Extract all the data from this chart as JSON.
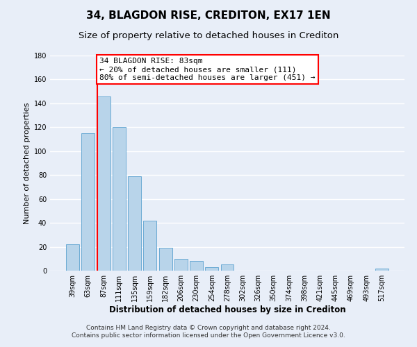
{
  "title": "34, BLAGDON RISE, CREDITON, EX17 1EN",
  "subtitle": "Size of property relative to detached houses in Crediton",
  "xlabel": "Distribution of detached houses by size in Crediton",
  "ylabel": "Number of detached properties",
  "footnote1": "Contains HM Land Registry data © Crown copyright and database right 2024.",
  "footnote2": "Contains public sector information licensed under the Open Government Licence v3.0.",
  "bar_labels": [
    "39sqm",
    "63sqm",
    "87sqm",
    "111sqm",
    "135sqm",
    "159sqm",
    "182sqm",
    "206sqm",
    "230sqm",
    "254sqm",
    "278sqm",
    "302sqm",
    "326sqm",
    "350sqm",
    "374sqm",
    "398sqm",
    "421sqm",
    "445sqm",
    "469sqm",
    "493sqm",
    "517sqm"
  ],
  "bar_values": [
    22,
    115,
    146,
    120,
    79,
    42,
    19,
    10,
    8,
    3,
    5,
    0,
    0,
    0,
    0,
    0,
    0,
    0,
    0,
    0,
    2
  ],
  "bar_color": "#b8d4ea",
  "bar_edge_color": "#6aaad4",
  "ylim": [
    0,
    180
  ],
  "yticks": [
    0,
    20,
    40,
    60,
    80,
    100,
    120,
    140,
    160,
    180
  ],
  "property_line_label": "34 BLAGDON RISE: 83sqm",
  "annotation_line1": "← 20% of detached houses are smaller (111)",
  "annotation_line2": "80% of semi-detached houses are larger (451) →",
  "vline_bar_index": 2,
  "bg_color": "#e8eef8",
  "grid_color": "#ffffff",
  "title_fontsize": 11,
  "subtitle_fontsize": 9.5,
  "annotation_fontsize": 8,
  "ylabel_fontsize": 8,
  "xlabel_fontsize": 8.5,
  "footnote_fontsize": 6.5,
  "tick_fontsize": 7
}
